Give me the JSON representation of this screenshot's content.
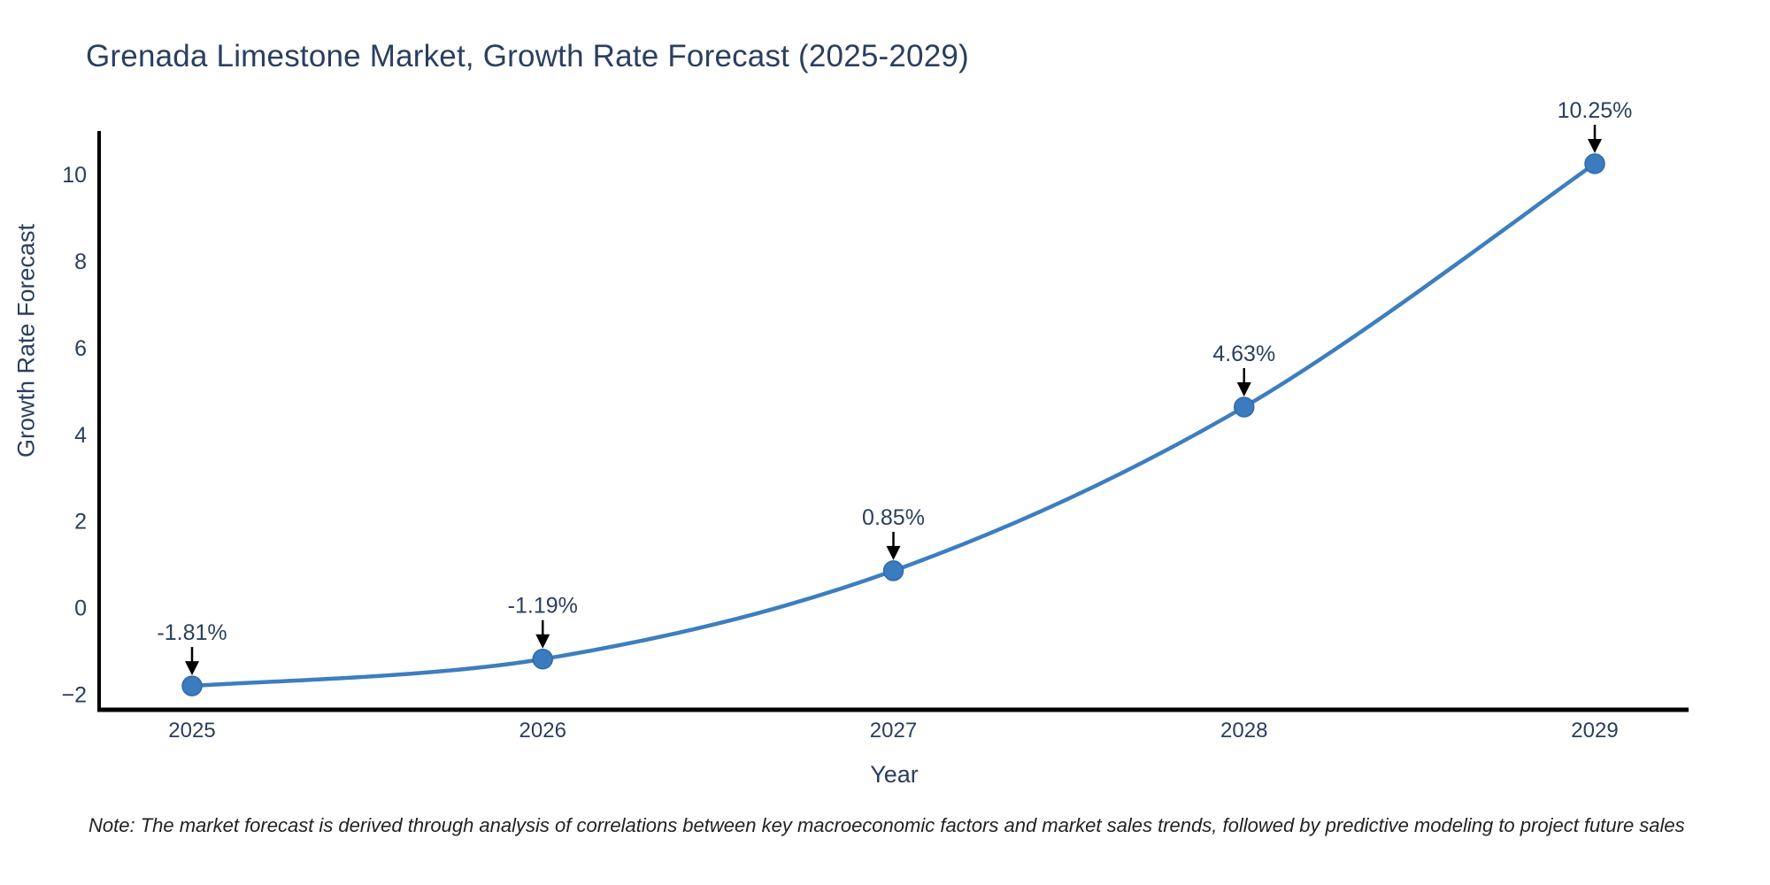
{
  "title": "Grenada Limestone Market, Growth Rate Forecast (2025-2029)",
  "note": "Note: The market forecast is derived through analysis of correlations between key macroeconomic factors and market sales trends, followed by predictive modeling to project future sales",
  "chart_data": {
    "type": "line",
    "title": "Grenada Limestone Market, Growth Rate Forecast (2025-2029)",
    "x": [
      2025,
      2026,
      2027,
      2028,
      2029
    ],
    "categories": [
      "2025",
      "2026",
      "2027",
      "2028",
      "2029"
    ],
    "values": [
      -1.81,
      -1.19,
      0.85,
      4.63,
      10.25
    ],
    "point_labels": [
      "-1.81%",
      "-1.19%",
      "0.85%",
      "4.63%",
      "10.25%"
    ],
    "xlabel": "Year",
    "ylabel": "Growth Rate Forecast",
    "yticks": [
      10,
      8,
      6,
      4,
      2,
      0,
      -2
    ],
    "ytick_labels": [
      "10",
      "8",
      "6",
      "4",
      "2",
      "0",
      "−2"
    ],
    "ylim": [
      -2.4,
      11.0
    ],
    "line_shape": "spline",
    "grid": false,
    "legend_position": "none",
    "annotation_style": "value label with downward arrow to each point"
  },
  "colors": {
    "background": "#ffffff",
    "line": "#3d7ebf",
    "marker_fill": "#3a7cbe",
    "marker_edge": "#2f6ba8",
    "axis": "#000000",
    "text": "#2a3f5f",
    "annotation_arrow": "#000000",
    "note_text": "#222222"
  }
}
